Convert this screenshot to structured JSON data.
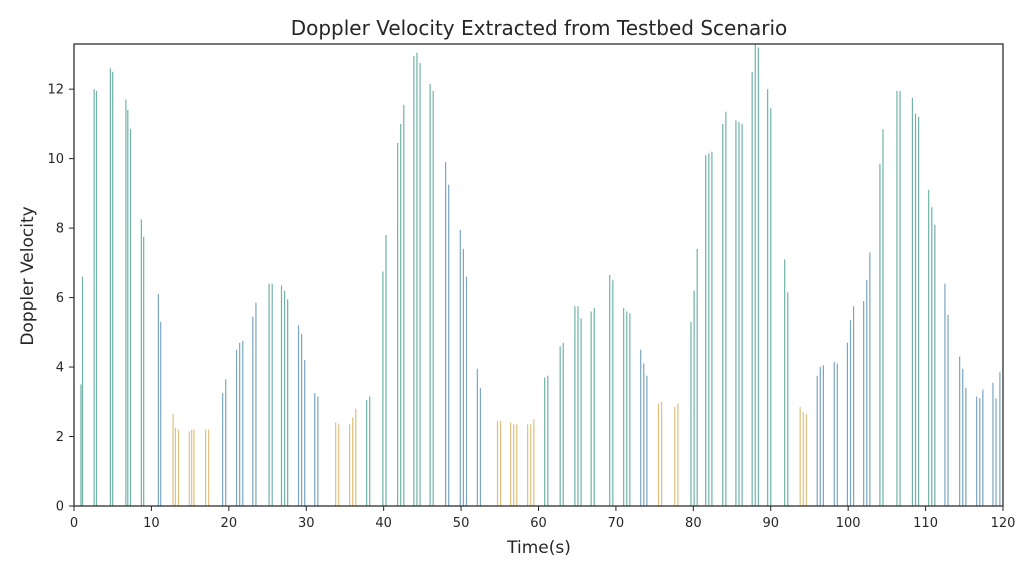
{
  "chart_data": {
    "type": "bar",
    "title": "Doppler Velocity Extracted from Testbed Scenario",
    "xlabel": "Time(s)",
    "ylabel": "Doppler Velocity",
    "xlim": [
      0,
      120
    ],
    "ylim": [
      0,
      13.3
    ],
    "xticks": [
      0,
      10,
      20,
      30,
      40,
      50,
      60,
      70,
      80,
      90,
      100,
      110,
      120
    ],
    "yticks": [
      0,
      2,
      4,
      6,
      8,
      10,
      12
    ],
    "grid": false,
    "legend": "none",
    "colors": {
      "teal": "#6fb3a8",
      "blue": "#7aa6c2",
      "gold": "#e0c07a"
    },
    "bars": [
      {
        "x": 0.9,
        "y": 3.5,
        "c": "teal"
      },
      {
        "x": 1.1,
        "y": 6.6,
        "c": "teal"
      },
      {
        "x": 2.6,
        "y": 12.0,
        "c": "teal"
      },
      {
        "x": 2.9,
        "y": 11.95,
        "c": "teal"
      },
      {
        "x": 4.7,
        "y": 12.6,
        "c": "teal"
      },
      {
        "x": 5.0,
        "y": 12.5,
        "c": "teal"
      },
      {
        "x": 6.7,
        "y": 11.7,
        "c": "teal"
      },
      {
        "x": 6.95,
        "y": 11.4,
        "c": "teal"
      },
      {
        "x": 7.3,
        "y": 10.85,
        "c": "teal"
      },
      {
        "x": 8.7,
        "y": 8.25,
        "c": "teal"
      },
      {
        "x": 9.0,
        "y": 7.75,
        "c": "teal"
      },
      {
        "x": 10.9,
        "y": 6.1,
        "c": "blue"
      },
      {
        "x": 11.2,
        "y": 5.3,
        "c": "blue"
      },
      {
        "x": 12.8,
        "y": 2.65,
        "c": "gold"
      },
      {
        "x": 13.1,
        "y": 2.25,
        "c": "gold"
      },
      {
        "x": 13.5,
        "y": 2.2,
        "c": "gold"
      },
      {
        "x": 14.9,
        "y": 2.15,
        "c": "gold"
      },
      {
        "x": 15.2,
        "y": 2.2,
        "c": "gold"
      },
      {
        "x": 15.5,
        "y": 2.2,
        "c": "gold"
      },
      {
        "x": 17.0,
        "y": 2.2,
        "c": "gold"
      },
      {
        "x": 17.4,
        "y": 2.2,
        "c": "gold"
      },
      {
        "x": 19.2,
        "y": 3.25,
        "c": "blue"
      },
      {
        "x": 19.6,
        "y": 3.65,
        "c": "blue"
      },
      {
        "x": 21.0,
        "y": 4.5,
        "c": "blue"
      },
      {
        "x": 21.4,
        "y": 4.7,
        "c": "blue"
      },
      {
        "x": 21.8,
        "y": 4.75,
        "c": "blue"
      },
      {
        "x": 23.1,
        "y": 5.45,
        "c": "blue"
      },
      {
        "x": 23.5,
        "y": 5.85,
        "c": "blue"
      },
      {
        "x": 25.2,
        "y": 6.4,
        "c": "teal"
      },
      {
        "x": 25.6,
        "y": 6.4,
        "c": "teal"
      },
      {
        "x": 26.8,
        "y": 6.35,
        "c": "teal"
      },
      {
        "x": 27.2,
        "y": 6.2,
        "c": "teal"
      },
      {
        "x": 27.6,
        "y": 5.95,
        "c": "teal"
      },
      {
        "x": 29.0,
        "y": 5.2,
        "c": "blue"
      },
      {
        "x": 29.4,
        "y": 4.95,
        "c": "blue"
      },
      {
        "x": 29.8,
        "y": 4.2,
        "c": "blue"
      },
      {
        "x": 31.1,
        "y": 3.25,
        "c": "blue"
      },
      {
        "x": 31.5,
        "y": 3.15,
        "c": "blue"
      },
      {
        "x": 33.8,
        "y": 2.4,
        "c": "gold"
      },
      {
        "x": 34.2,
        "y": 2.35,
        "c": "gold"
      },
      {
        "x": 35.6,
        "y": 2.35,
        "c": "gold"
      },
      {
        "x": 36.0,
        "y": 2.55,
        "c": "gold"
      },
      {
        "x": 36.4,
        "y": 2.8,
        "c": "gold"
      },
      {
        "x": 37.8,
        "y": 3.05,
        "c": "teal"
      },
      {
        "x": 38.2,
        "y": 3.15,
        "c": "teal"
      },
      {
        "x": 39.9,
        "y": 6.75,
        "c": "teal"
      },
      {
        "x": 40.3,
        "y": 7.8,
        "c": "teal"
      },
      {
        "x": 41.8,
        "y": 10.45,
        "c": "teal"
      },
      {
        "x": 42.2,
        "y": 11.0,
        "c": "teal"
      },
      {
        "x": 42.6,
        "y": 11.55,
        "c": "teal"
      },
      {
        "x": 43.9,
        "y": 12.95,
        "c": "teal"
      },
      {
        "x": 44.3,
        "y": 13.05,
        "c": "teal"
      },
      {
        "x": 44.7,
        "y": 12.75,
        "c": "teal"
      },
      {
        "x": 46.0,
        "y": 12.15,
        "c": "teal"
      },
      {
        "x": 46.4,
        "y": 11.95,
        "c": "teal"
      },
      {
        "x": 48.0,
        "y": 9.9,
        "c": "blue"
      },
      {
        "x": 48.4,
        "y": 9.25,
        "c": "blue"
      },
      {
        "x": 49.9,
        "y": 7.95,
        "c": "blue"
      },
      {
        "x": 50.3,
        "y": 7.4,
        "c": "blue"
      },
      {
        "x": 50.7,
        "y": 6.6,
        "c": "blue"
      },
      {
        "x": 52.1,
        "y": 3.95,
        "c": "blue"
      },
      {
        "x": 52.5,
        "y": 3.4,
        "c": "blue"
      },
      {
        "x": 54.7,
        "y": 2.45,
        "c": "gold"
      },
      {
        "x": 55.1,
        "y": 2.45,
        "c": "gold"
      },
      {
        "x": 56.4,
        "y": 2.4,
        "c": "gold"
      },
      {
        "x": 56.8,
        "y": 2.35,
        "c": "gold"
      },
      {
        "x": 57.2,
        "y": 2.35,
        "c": "gold"
      },
      {
        "x": 58.6,
        "y": 2.35,
        "c": "gold"
      },
      {
        "x": 59.0,
        "y": 2.35,
        "c": "gold"
      },
      {
        "x": 59.4,
        "y": 2.5,
        "c": "gold"
      },
      {
        "x": 60.8,
        "y": 3.7,
        "c": "teal"
      },
      {
        "x": 61.2,
        "y": 3.75,
        "c": "teal"
      },
      {
        "x": 62.8,
        "y": 4.6,
        "c": "teal"
      },
      {
        "x": 63.2,
        "y": 4.7,
        "c": "teal"
      },
      {
        "x": 64.7,
        "y": 5.75,
        "c": "teal"
      },
      {
        "x": 65.1,
        "y": 5.75,
        "c": "teal"
      },
      {
        "x": 65.5,
        "y": 5.4,
        "c": "teal"
      },
      {
        "x": 66.8,
        "y": 5.6,
        "c": "teal"
      },
      {
        "x": 67.2,
        "y": 5.7,
        "c": "teal"
      },
      {
        "x": 69.2,
        "y": 6.65,
        "c": "teal"
      },
      {
        "x": 69.6,
        "y": 6.5,
        "c": "teal"
      },
      {
        "x": 71.0,
        "y": 5.7,
        "c": "teal"
      },
      {
        "x": 71.4,
        "y": 5.6,
        "c": "teal"
      },
      {
        "x": 71.8,
        "y": 5.55,
        "c": "teal"
      },
      {
        "x": 73.2,
        "y": 4.5,
        "c": "blue"
      },
      {
        "x": 73.6,
        "y": 4.1,
        "c": "blue"
      },
      {
        "x": 74.0,
        "y": 3.75,
        "c": "blue"
      },
      {
        "x": 75.5,
        "y": 2.95,
        "c": "gold"
      },
      {
        "x": 75.9,
        "y": 3.0,
        "c": "gold"
      },
      {
        "x": 77.6,
        "y": 2.85,
        "c": "gold"
      },
      {
        "x": 78.0,
        "y": 2.95,
        "c": "gold"
      },
      {
        "x": 79.7,
        "y": 5.3,
        "c": "teal"
      },
      {
        "x": 80.1,
        "y": 6.2,
        "c": "teal"
      },
      {
        "x": 80.5,
        "y": 7.4,
        "c": "teal"
      },
      {
        "x": 81.6,
        "y": 10.1,
        "c": "teal"
      },
      {
        "x": 82.0,
        "y": 10.15,
        "c": "teal"
      },
      {
        "x": 82.4,
        "y": 10.2,
        "c": "teal"
      },
      {
        "x": 83.8,
        "y": 11.0,
        "c": "teal"
      },
      {
        "x": 84.2,
        "y": 11.35,
        "c": "teal"
      },
      {
        "x": 85.5,
        "y": 11.1,
        "c": "teal"
      },
      {
        "x": 85.9,
        "y": 11.05,
        "c": "teal"
      },
      {
        "x": 86.3,
        "y": 11.0,
        "c": "teal"
      },
      {
        "x": 87.6,
        "y": 12.5,
        "c": "teal"
      },
      {
        "x": 88.0,
        "y": 13.3,
        "c": "teal"
      },
      {
        "x": 88.4,
        "y": 13.2,
        "c": "teal"
      },
      {
        "x": 89.6,
        "y": 12.0,
        "c": "teal"
      },
      {
        "x": 90.0,
        "y": 11.45,
        "c": "teal"
      },
      {
        "x": 91.8,
        "y": 7.1,
        "c": "teal"
      },
      {
        "x": 92.2,
        "y": 6.15,
        "c": "teal"
      },
      {
        "x": 93.8,
        "y": 2.85,
        "c": "gold"
      },
      {
        "x": 94.2,
        "y": 2.7,
        "c": "gold"
      },
      {
        "x": 94.6,
        "y": 2.65,
        "c": "gold"
      },
      {
        "x": 96.0,
        "y": 3.75,
        "c": "blue"
      },
      {
        "x": 96.4,
        "y": 4.0,
        "c": "blue"
      },
      {
        "x": 96.8,
        "y": 4.05,
        "c": "blue"
      },
      {
        "x": 98.2,
        "y": 4.15,
        "c": "blue"
      },
      {
        "x": 98.6,
        "y": 4.1,
        "c": "blue"
      },
      {
        "x": 99.9,
        "y": 4.7,
        "c": "blue"
      },
      {
        "x": 100.3,
        "y": 5.35,
        "c": "blue"
      },
      {
        "x": 100.7,
        "y": 5.75,
        "c": "blue"
      },
      {
        "x": 102.0,
        "y": 5.9,
        "c": "blue"
      },
      {
        "x": 102.4,
        "y": 6.5,
        "c": "blue"
      },
      {
        "x": 102.8,
        "y": 7.3,
        "c": "blue"
      },
      {
        "x": 104.1,
        "y": 9.85,
        "c": "teal"
      },
      {
        "x": 104.5,
        "y": 10.85,
        "c": "teal"
      },
      {
        "x": 106.3,
        "y": 11.95,
        "c": "teal"
      },
      {
        "x": 106.7,
        "y": 11.95,
        "c": "teal"
      },
      {
        "x": 108.3,
        "y": 11.75,
        "c": "teal"
      },
      {
        "x": 108.7,
        "y": 11.3,
        "c": "teal"
      },
      {
        "x": 109.1,
        "y": 11.2,
        "c": "teal"
      },
      {
        "x": 110.4,
        "y": 9.1,
        "c": "teal"
      },
      {
        "x": 110.8,
        "y": 8.6,
        "c": "teal"
      },
      {
        "x": 111.2,
        "y": 8.1,
        "c": "teal"
      },
      {
        "x": 112.5,
        "y": 6.4,
        "c": "blue"
      },
      {
        "x": 112.9,
        "y": 5.5,
        "c": "blue"
      },
      {
        "x": 114.4,
        "y": 4.3,
        "c": "blue"
      },
      {
        "x": 114.8,
        "y": 3.95,
        "c": "blue"
      },
      {
        "x": 115.2,
        "y": 3.4,
        "c": "blue"
      },
      {
        "x": 116.6,
        "y": 3.15,
        "c": "blue"
      },
      {
        "x": 117.0,
        "y": 3.1,
        "c": "blue"
      },
      {
        "x": 117.4,
        "y": 3.35,
        "c": "blue"
      },
      {
        "x": 118.7,
        "y": 3.55,
        "c": "blue"
      },
      {
        "x": 119.1,
        "y": 3.1,
        "c": "blue"
      },
      {
        "x": 119.6,
        "y": 3.85,
        "c": "blue"
      }
    ]
  }
}
